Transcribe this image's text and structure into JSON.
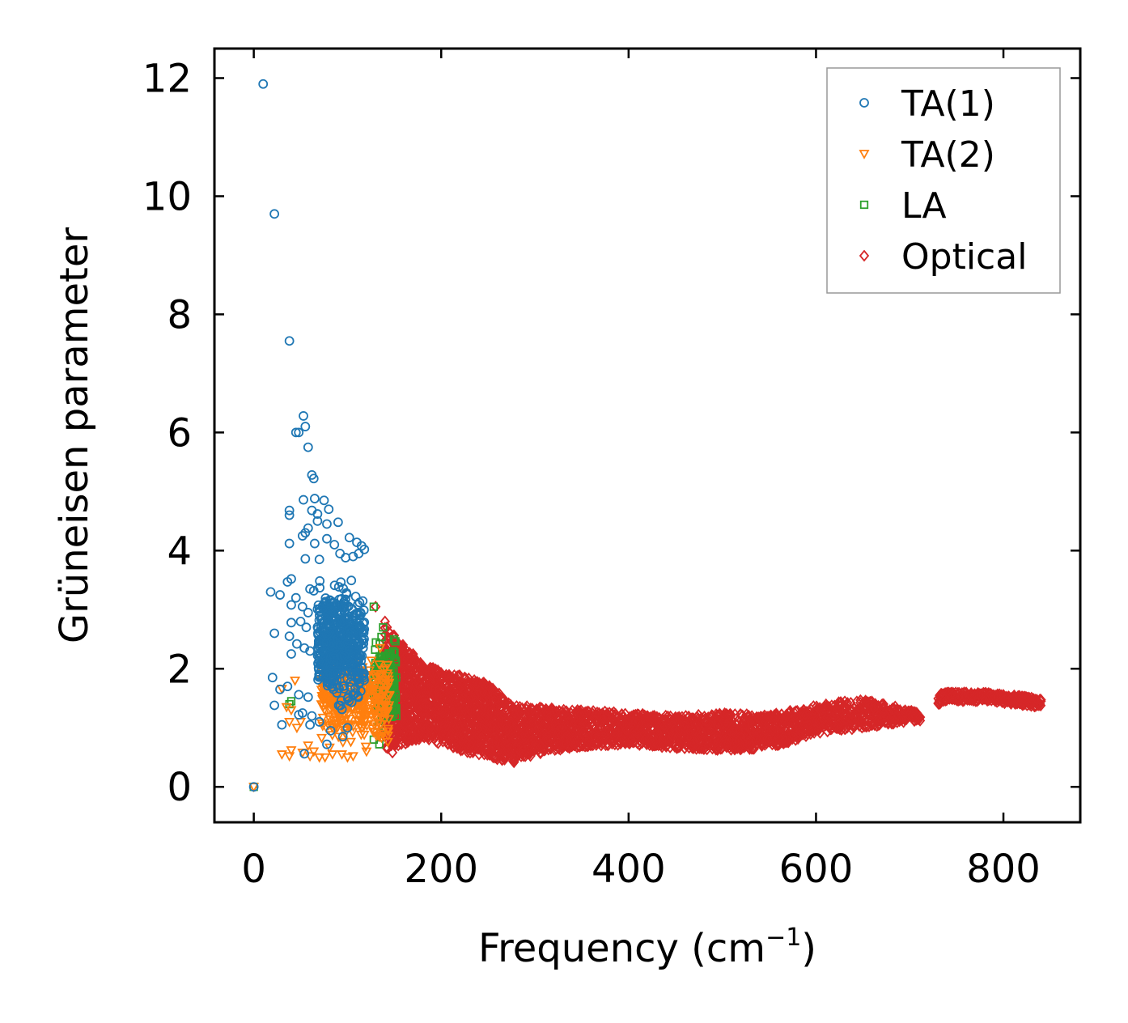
{
  "chart_data": {
    "type": "scatter",
    "title": "",
    "xlabel": "Frequency (cm",
    "xlabel_sup": "−1",
    "xlabel_close": ")",
    "ylabel": "Grüneisen parameter",
    "xlim": [
      -42,
      882
    ],
    "ylim": [
      -0.6,
      12.5
    ],
    "x_ticks": [
      0,
      200,
      400,
      600,
      800
    ],
    "y_ticks": [
      0,
      2,
      4,
      6,
      8,
      10,
      12
    ],
    "x_tick_labels": [
      "0",
      "200",
      "400",
      "600",
      "800"
    ],
    "y_tick_labels": [
      "0",
      "2",
      "4",
      "6",
      "8",
      "10",
      "12"
    ],
    "legend_position": "top-right",
    "series": [
      {
        "name": "TA(1)",
        "marker": "circle",
        "color": "#1f77b4",
        "points": [
          [
            0,
            0
          ],
          [
            10,
            11.9
          ],
          [
            22,
            9.7
          ],
          [
            38,
            7.55
          ],
          [
            53,
            6.28
          ],
          [
            55,
            6.1
          ],
          [
            58,
            5.75
          ],
          [
            45,
            6
          ],
          [
            48,
            6
          ],
          [
            62,
            5.28
          ],
          [
            64,
            5.22
          ],
          [
            53,
            4.86
          ],
          [
            65,
            4.88
          ],
          [
            75,
            4.85
          ],
          [
            80,
            4.7
          ],
          [
            62,
            4.68
          ],
          [
            68,
            4.62
          ],
          [
            38,
            4.68
          ],
          [
            38,
            4.6
          ],
          [
            58,
            4.38
          ],
          [
            55,
            4.3
          ],
          [
            52,
            4.25
          ],
          [
            90,
            4.48
          ],
          [
            78,
            4.45
          ],
          [
            68,
            4.5
          ],
          [
            38,
            4.12
          ],
          [
            65,
            4.12
          ],
          [
            78,
            4.2
          ],
          [
            86,
            4.1
          ],
          [
            102,
            4.22
          ],
          [
            110,
            4.14
          ],
          [
            115,
            4.08
          ],
          [
            118,
            4.02
          ],
          [
            92,
            3.95
          ],
          [
            98,
            3.88
          ],
          [
            106,
            3.9
          ],
          [
            112,
            3.95
          ],
          [
            55,
            3.86
          ],
          [
            70,
            3.85
          ],
          [
            40,
            3.52
          ],
          [
            36,
            3.47
          ],
          [
            18,
            3.3
          ],
          [
            28,
            3.25
          ],
          [
            60,
            3.35
          ],
          [
            64,
            3.32
          ],
          [
            45,
            3.2
          ],
          [
            40,
            3.08
          ],
          [
            52,
            3.05
          ],
          [
            58,
            2.95
          ],
          [
            76,
            3.12
          ],
          [
            82,
            3.15
          ],
          [
            50,
            2.8
          ],
          [
            56,
            2.7
          ],
          [
            40,
            2.78
          ],
          [
            22,
            2.6
          ],
          [
            38,
            2.55
          ],
          [
            46,
            2.42
          ],
          [
            54,
            2.35
          ],
          [
            60,
            2.3
          ],
          [
            40,
            2.25
          ],
          [
            20,
            1.85
          ],
          [
            28,
            1.65
          ],
          [
            36,
            1.7
          ],
          [
            48,
            1.56
          ],
          [
            58,
            1.52
          ],
          [
            22,
            1.38
          ],
          [
            52,
            1.25
          ],
          [
            62,
            1.2
          ],
          [
            30,
            1.05
          ],
          [
            54,
            0.56
          ],
          [
            78,
            0.72
          ],
          [
            95,
            0.85
          ],
          [
            100,
            1
          ],
          [
            82,
            0.95
          ],
          [
            70,
            1.1
          ],
          [
            60,
            1.05
          ],
          [
            48,
            1.22
          ]
        ],
        "cloud": {
          "x_range": [
            68,
            118
          ],
          "y_center": 2.4,
          "y_spread": 0.9,
          "count": 520
        }
      },
      {
        "name": "TA(2)",
        "marker": "triangle-down",
        "color": "#ff7f0e",
        "points": [
          [
            0,
            0
          ],
          [
            30,
            0.55
          ],
          [
            38,
            0.52
          ],
          [
            40,
            0.62
          ],
          [
            52,
            0.58
          ],
          [
            60,
            0.52
          ],
          [
            70,
            0.5
          ],
          [
            76,
            0.5
          ],
          [
            84,
            0.55
          ],
          [
            94,
            0.55
          ],
          [
            100,
            0.5
          ],
          [
            106,
            0.52
          ],
          [
            64,
            0.6
          ],
          [
            58,
            0.7
          ],
          [
            35,
            1.35
          ],
          [
            40,
            1.3
          ],
          [
            38,
            1.1
          ],
          [
            46,
            1.0
          ],
          [
            50,
            1.1
          ],
          [
            30,
            1.66
          ],
          [
            44,
            1.8
          ]
        ],
        "cloud": {
          "x_range": [
            72,
            145
          ],
          "y_center": 1.5,
          "y_spread": 0.75,
          "count": 380
        }
      },
      {
        "name": "LA",
        "marker": "square",
        "color": "#2ca02c",
        "points": [
          [
            0,
            0
          ],
          [
            38,
            1.4
          ],
          [
            40,
            1.45
          ],
          [
            128,
            0.8
          ],
          [
            134,
            0.72
          ],
          [
            135,
            0.9
          ],
          [
            128,
            3.05
          ],
          [
            138,
            2.7
          ],
          [
            150,
            1.3
          ],
          [
            152,
            1.2
          ]
        ],
        "cloud": {
          "x_range": [
            128,
            152
          ],
          "y_center": 1.75,
          "y_spread": 0.65,
          "count": 170
        }
      },
      {
        "name": "Optical",
        "marker": "diamond",
        "color": "#d62728",
        "points": [
          [
            130,
            3.05
          ],
          [
            148,
            0.58
          ],
          [
            140,
            2.8
          ],
          [
            732,
            1.55
          ],
          [
            840,
            1.45
          ]
        ],
        "band": [
          [
            140,
            2.75,
            0.62
          ],
          [
            160,
            2.4,
            0.72
          ],
          [
            180,
            2.1,
            0.82
          ],
          [
            200,
            1.95,
            0.72
          ],
          [
            220,
            1.9,
            0.62
          ],
          [
            250,
            1.75,
            0.5
          ],
          [
            275,
            1.4,
            0.4
          ],
          [
            300,
            1.35,
            0.55
          ],
          [
            350,
            1.3,
            0.68
          ],
          [
            400,
            1.25,
            0.72
          ],
          [
            450,
            1.2,
            0.65
          ],
          [
            500,
            1.25,
            0.62
          ],
          [
            550,
            1.22,
            0.65
          ],
          [
            600,
            1.38,
            0.9
          ],
          [
            650,
            1.5,
            1.0
          ],
          [
            700,
            1.3,
            1.1
          ],
          [
            710,
            1.25,
            1.1
          ],
          [
            735,
            1.6,
            1.45
          ],
          [
            780,
            1.6,
            1.45
          ],
          [
            840,
            1.5,
            1.35
          ]
        ],
        "gap": [
          712,
          730
        ]
      }
    ]
  }
}
